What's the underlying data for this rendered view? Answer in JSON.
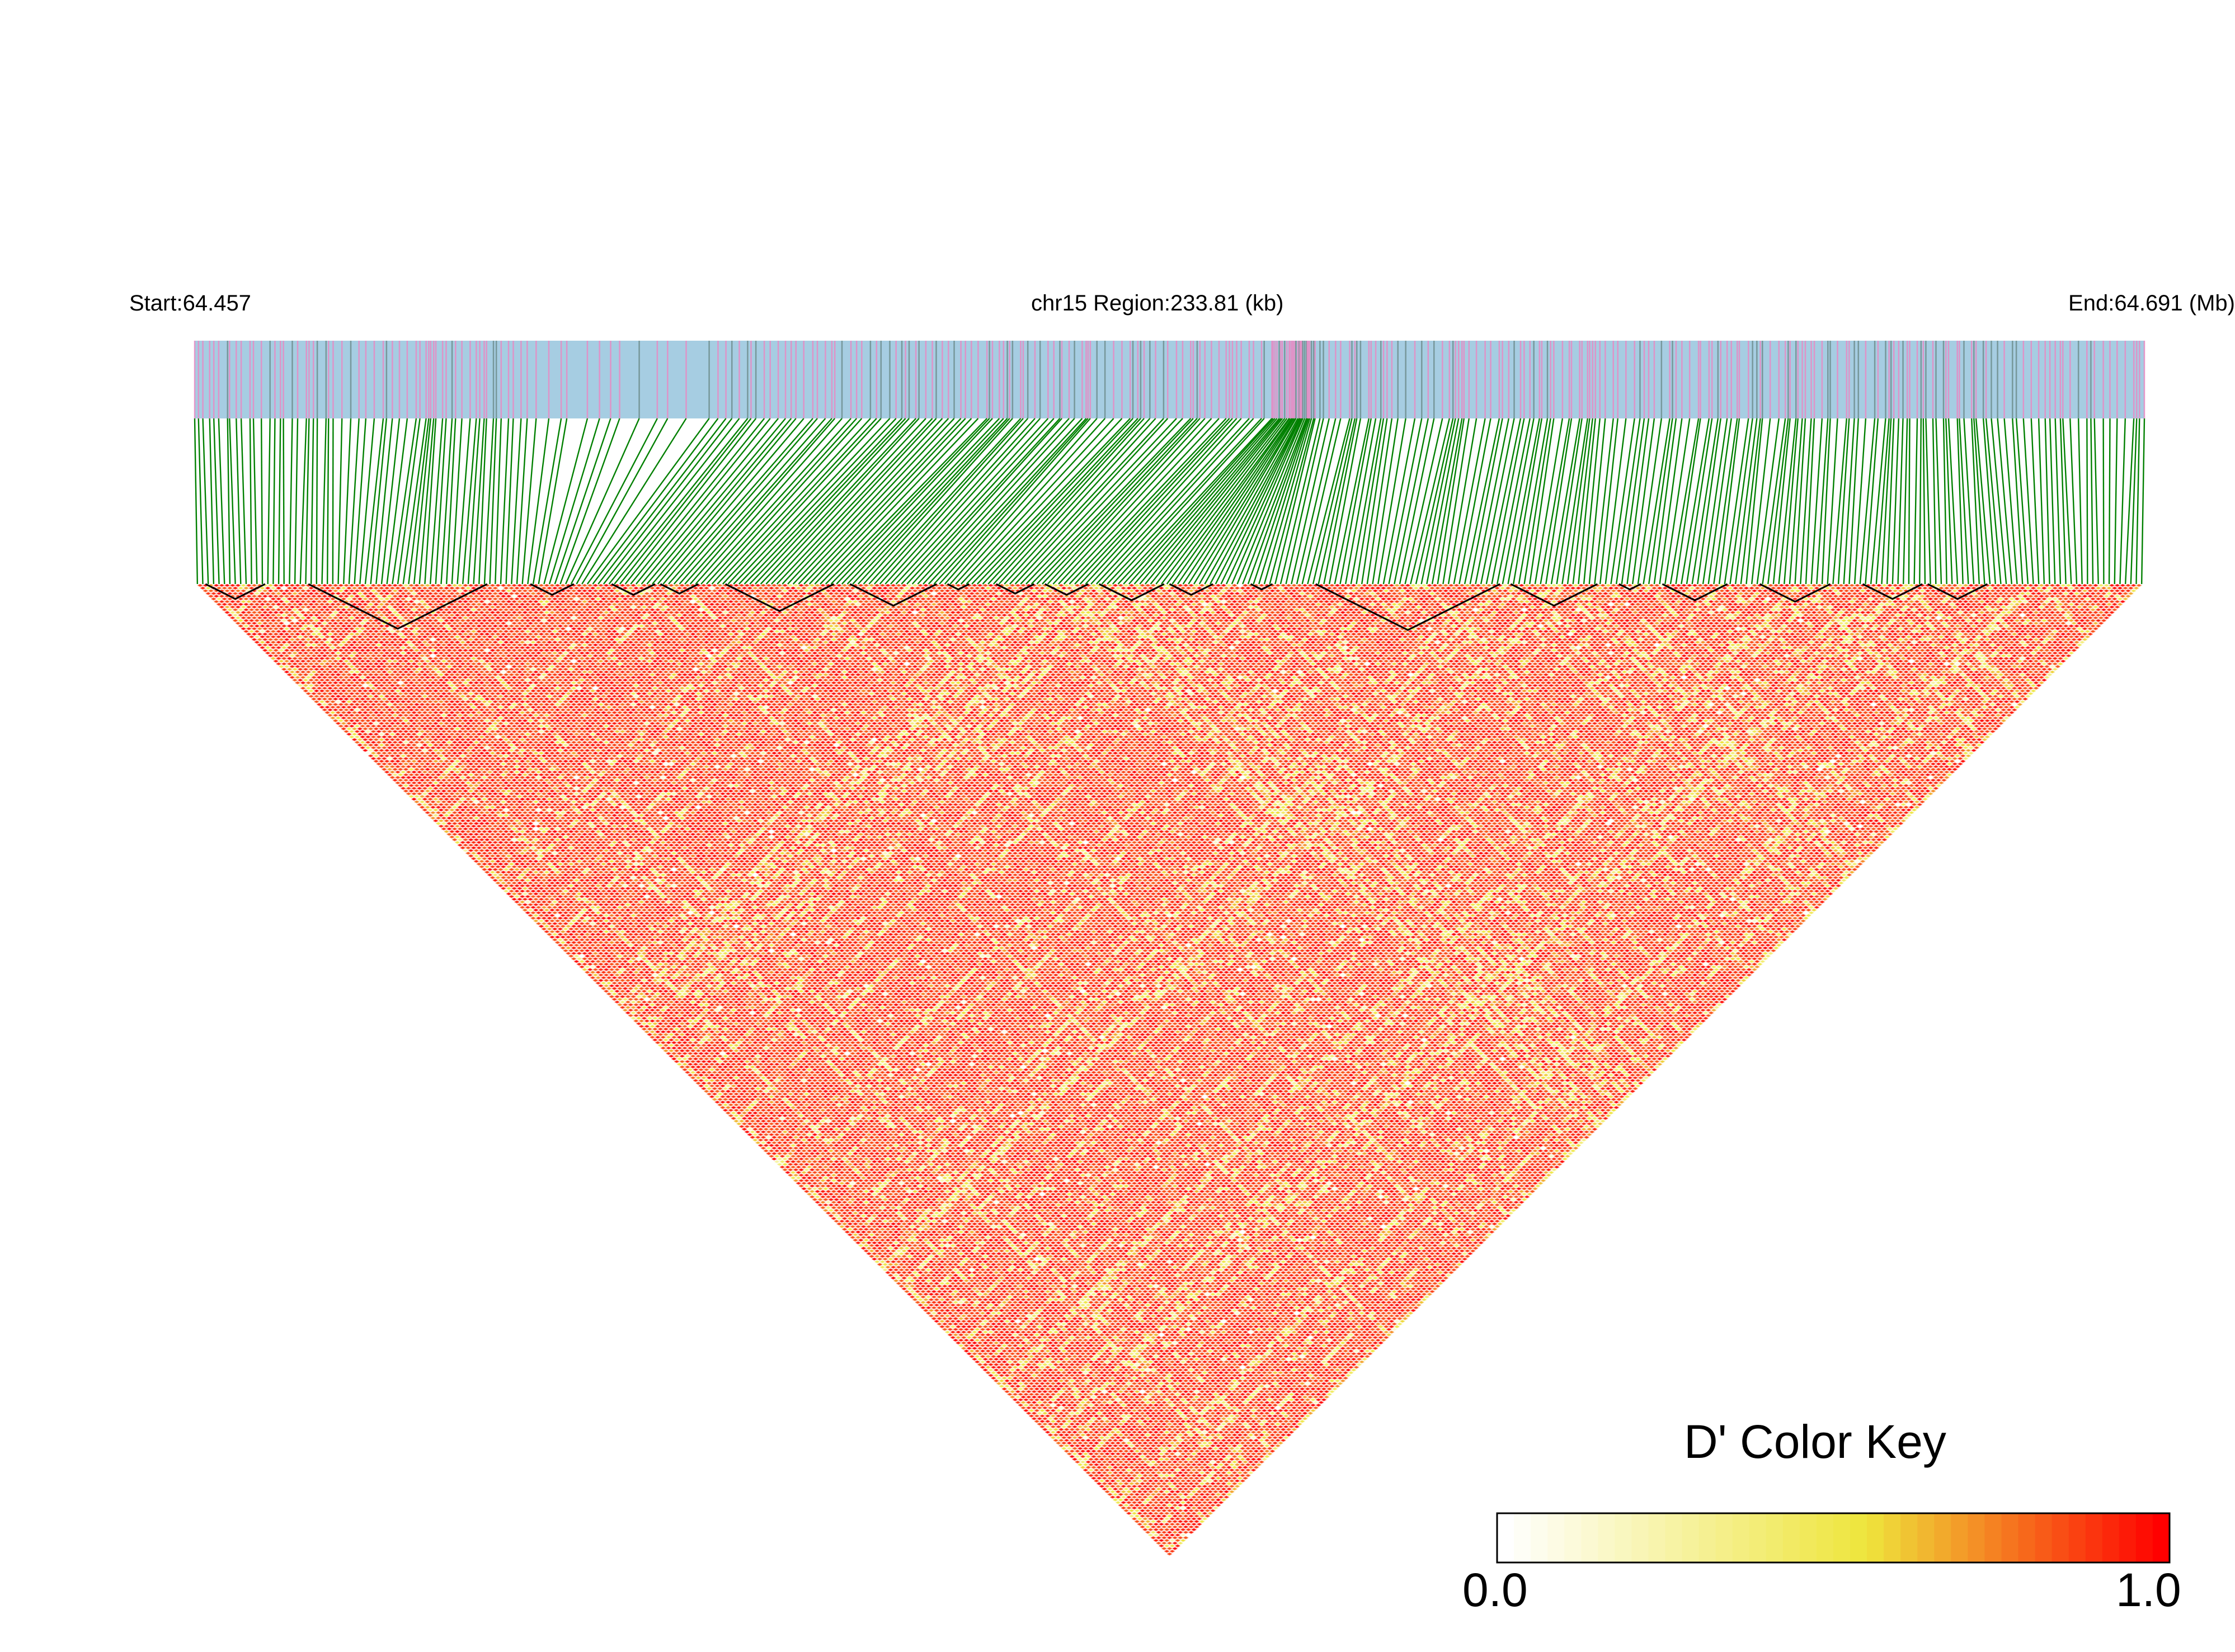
{
  "header": {
    "start_label": "Start:64.457",
    "region_label": "chr15 Region:233.81 (kb)",
    "end_label": "End:64.691 (Mb)"
  },
  "chart_data": {
    "type": "heatmap",
    "subtype": "LD triangle (pairwise D')",
    "chromosome": "chr15",
    "region_start_mb": 64.457,
    "region_end_mb": 64.691,
    "region_size_kb": 233.81,
    "measure": "D'",
    "value_range": [
      0.0,
      1.0
    ],
    "snp_count_approx": 360,
    "ld_blocks_approx": 20,
    "typical_dprime": 1.0,
    "legend": {
      "title": "D' Color Key",
      "min_label": "0.0",
      "max_label": "1.0",
      "placement": "bottom-right"
    },
    "colors": {
      "low": "#ffffff",
      "mid": "#eee53c",
      "high": "#ff0000",
      "track_bg": "#a6cde2",
      "track_marker_pink": "#e88ac3",
      "track_marker_gray": "#6e8e8e",
      "connector": "#008000",
      "block_outline": "#000000"
    }
  }
}
